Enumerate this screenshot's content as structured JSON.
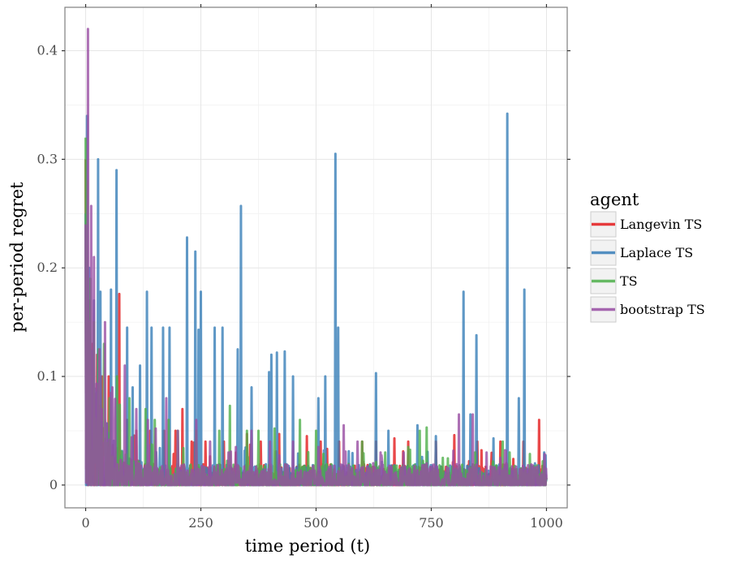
{
  "chart_data": {
    "type": "line",
    "xlabel": "time period (t)",
    "ylabel": "per-period regret",
    "xlim": [
      -45,
      1045
    ],
    "ylim": [
      -0.021,
      0.44
    ],
    "x_ticks": [
      0,
      250,
      500,
      750,
      1000
    ],
    "x_tick_labels": [
      "0",
      "250",
      "500",
      "750",
      "1000"
    ],
    "y_ticks": [
      0,
      0.1,
      0.2,
      0.3,
      0.4
    ],
    "y_tick_labels": [
      "0",
      "0.1",
      "0.2",
      "0.3",
      "0.4"
    ],
    "grid": true,
    "legend": {
      "title": "agent",
      "position": "right"
    },
    "series": [
      {
        "name": "Langevin TS",
        "color": "#e41a1c",
        "peaks": [
          [
            0,
            0.3
          ],
          [
            3,
            0.22
          ],
          [
            8,
            0.17
          ],
          [
            15,
            0.13
          ],
          [
            25,
            0.12
          ],
          [
            35,
            0.1
          ],
          [
            50,
            0.1
          ],
          [
            73,
            0.176
          ],
          [
            90,
            0.06
          ],
          [
            110,
            0.05
          ],
          [
            140,
            0.05
          ],
          [
            170,
            0.05
          ],
          [
            195,
            0.05
          ],
          [
            210,
            0.07
          ],
          [
            230,
            0.04
          ],
          [
            260,
            0.04
          ],
          [
            300,
            0.04
          ],
          [
            350,
            0.047
          ],
          [
            380,
            0.04
          ],
          [
            420,
            0.047
          ],
          [
            480,
            0.045
          ],
          [
            510,
            0.04
          ],
          [
            550,
            0.04
          ],
          [
            600,
            0.04
          ],
          [
            630,
            0.04
          ],
          [
            670,
            0.043
          ],
          [
            700,
            0.04
          ],
          [
            760,
            0.04
          ],
          [
            800,
            0.046
          ],
          [
            850,
            0.04
          ],
          [
            900,
            0.04
          ],
          [
            950,
            0.04
          ],
          [
            984,
            0.06
          ],
          [
            1000,
            0.01
          ]
        ]
      },
      {
        "name": "Laplace TS",
        "color": "#377eb8",
        "peaks": [
          [
            0,
            0.25
          ],
          [
            3,
            0.34
          ],
          [
            8,
            0.2
          ],
          [
            18,
            0.17
          ],
          [
            27,
            0.3
          ],
          [
            32,
            0.178
          ],
          [
            55,
            0.18
          ],
          [
            67,
            0.29
          ],
          [
            90,
            0.145
          ],
          [
            102,
            0.09
          ],
          [
            118,
            0.11
          ],
          [
            133,
            0.178
          ],
          [
            143,
            0.145
          ],
          [
            168,
            0.145
          ],
          [
            182,
            0.145
          ],
          [
            220,
            0.228
          ],
          [
            238,
            0.215
          ],
          [
            245,
            0.143
          ],
          [
            250,
            0.178
          ],
          [
            280,
            0.145
          ],
          [
            297,
            0.145
          ],
          [
            330,
            0.125
          ],
          [
            337,
            0.257
          ],
          [
            360,
            0.09
          ],
          [
            398,
            0.104
          ],
          [
            403,
            0.12
          ],
          [
            415,
            0.122
          ],
          [
            432,
            0.123
          ],
          [
            450,
            0.1
          ],
          [
            505,
            0.08
          ],
          [
            520,
            0.1
          ],
          [
            542,
            0.305
          ],
          [
            548,
            0.145
          ],
          [
            630,
            0.103
          ],
          [
            657,
            0.05
          ],
          [
            720,
            0.055
          ],
          [
            760,
            0.045
          ],
          [
            820,
            0.178
          ],
          [
            835,
            0.065
          ],
          [
            848,
            0.138
          ],
          [
            885,
            0.043
          ],
          [
            915,
            0.342
          ],
          [
            940,
            0.08
          ],
          [
            952,
            0.18
          ],
          [
            975,
            0.02
          ],
          [
            995,
            0.03
          ],
          [
            1000,
            0.005
          ]
        ]
      },
      {
        "name": "TS",
        "color": "#4daf4a",
        "peaks": [
          [
            0,
            0.32
          ],
          [
            3,
            0.28
          ],
          [
            10,
            0.19
          ],
          [
            18,
            0.15
          ],
          [
            28,
            0.125
          ],
          [
            40,
            0.13
          ],
          [
            52,
            0.08
          ],
          [
            68,
            0.1
          ],
          [
            95,
            0.08
          ],
          [
            130,
            0.07
          ],
          [
            150,
            0.06
          ],
          [
            180,
            0.06
          ],
          [
            200,
            0.05
          ],
          [
            240,
            0.05
          ],
          [
            290,
            0.05
          ],
          [
            313,
            0.073
          ],
          [
            350,
            0.05
          ],
          [
            375,
            0.05
          ],
          [
            410,
            0.052
          ],
          [
            465,
            0.06
          ],
          [
            500,
            0.05
          ],
          [
            600,
            0.04
          ],
          [
            650,
            0.03
          ],
          [
            700,
            0.035
          ],
          [
            725,
            0.05
          ],
          [
            740,
            0.053
          ],
          [
            775,
            0.025
          ],
          [
            845,
            0.03
          ],
          [
            905,
            0.04
          ],
          [
            920,
            0.03
          ],
          [
            960,
            0.01
          ],
          [
            1000,
            0.005
          ]
        ]
      },
      {
        "name": "bootstrap TS",
        "color": "#984ea3",
        "peaks": [
          [
            0,
            0.24
          ],
          [
            5,
            0.42
          ],
          [
            12,
            0.257
          ],
          [
            18,
            0.21
          ],
          [
            30,
            0.125
          ],
          [
            42,
            0.15
          ],
          [
            58,
            0.09
          ],
          [
            85,
            0.11
          ],
          [
            110,
            0.07
          ],
          [
            135,
            0.06
          ],
          [
            175,
            0.08
          ],
          [
            200,
            0.05
          ],
          [
            240,
            0.06
          ],
          [
            270,
            0.04
          ],
          [
            310,
            0.03
          ],
          [
            360,
            0.05
          ],
          [
            400,
            0.04
          ],
          [
            450,
            0.04
          ],
          [
            505,
            0.035
          ],
          [
            560,
            0.055
          ],
          [
            590,
            0.04
          ],
          [
            640,
            0.03
          ],
          [
            690,
            0.03
          ],
          [
            740,
            0.02
          ],
          [
            810,
            0.065
          ],
          [
            840,
            0.065
          ],
          [
            870,
            0.03
          ],
          [
            900,
            0.025
          ],
          [
            950,
            0.015
          ],
          [
            1000,
            0.005
          ]
        ]
      }
    ]
  }
}
